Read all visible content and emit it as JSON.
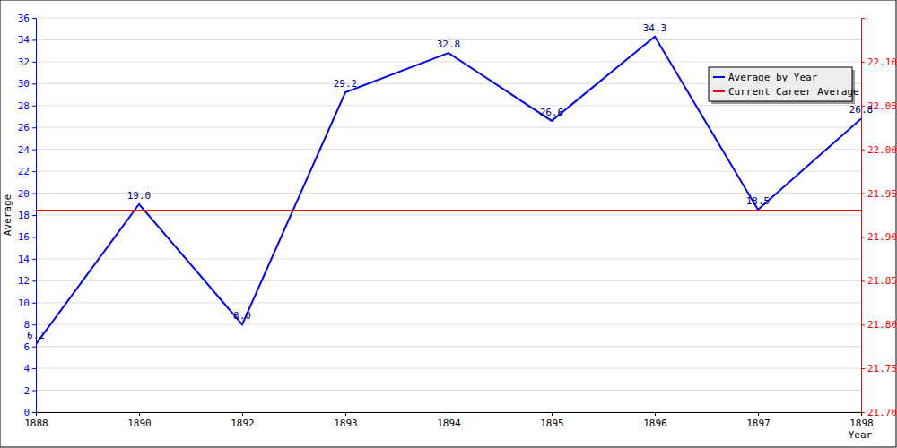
{
  "chart_data": {
    "type": "line",
    "x_label": "Year",
    "y_label": "Average",
    "categories": [
      "1888",
      "1890",
      "1892",
      "1893",
      "1894",
      "1895",
      "1896",
      "1897",
      "1898"
    ],
    "series": [
      {
        "name": "Average by Year",
        "color": "#0000ff",
        "data_labels": true,
        "values": [
          6.2,
          19.0,
          8.0,
          29.2,
          32.8,
          26.6,
          34.3,
          18.5,
          26.8
        ],
        "value_labels": [
          "6.2",
          "19.0",
          "8.0",
          "29.2",
          "32.8",
          "26.6",
          "34.3",
          "18.5",
          "26.8"
        ]
      },
      {
        "name": "Current Career Average",
        "color": "#ff0000",
        "axis": "y2",
        "values": [
          21.93,
          21.93,
          21.93,
          21.93,
          21.93,
          21.93,
          21.93,
          21.93,
          21.93
        ]
      }
    ],
    "ylim": [
      0,
      36
    ],
    "yticks": [
      0,
      2,
      4,
      6,
      8,
      10,
      12,
      14,
      16,
      18,
      20,
      22,
      24,
      26,
      28,
      30,
      32,
      34,
      36
    ],
    "y2lim": [
      21.7,
      22.15
    ],
    "y2ticks": [
      {
        "value": 21.7,
        "label": "21.70"
      },
      {
        "value": 21.75,
        "label": "21.75"
      },
      {
        "value": 21.8,
        "label": "21.80"
      },
      {
        "value": 21.85,
        "label": "21.85"
      },
      {
        "value": 21.9,
        "label": "21.90"
      },
      {
        "value": 21.95,
        "label": "21.95"
      },
      {
        "value": 22.0,
        "label": "22.00"
      },
      {
        "value": 22.05,
        "label": "22.05"
      },
      {
        "value": 22.1,
        "label": "22.10"
      }
    ],
    "grid": true,
    "legend": "upper right"
  }
}
